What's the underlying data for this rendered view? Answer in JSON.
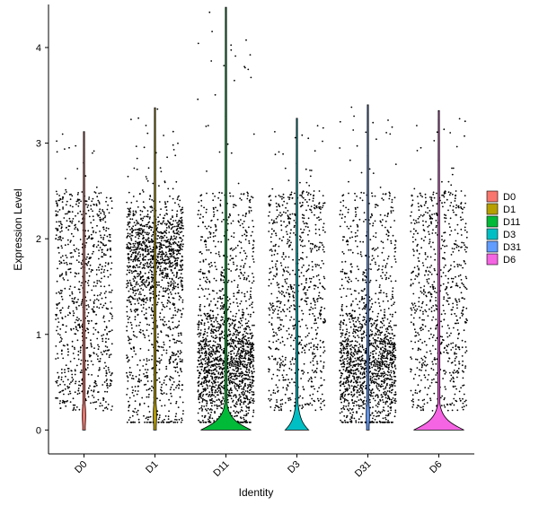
{
  "chart_data": {
    "type": "violin",
    "title": "",
    "xlabel": "Identity",
    "ylabel": "Expression Level",
    "ylim": [
      -0.25,
      4.45
    ],
    "yticks": [
      0,
      1,
      2,
      3,
      4
    ],
    "grid": false,
    "legend_position": "right",
    "categories": [
      "D0",
      "D1",
      "D11",
      "D3",
      "D31",
      "D6"
    ],
    "series": [
      {
        "name": "D0",
        "color": "#F8766D",
        "max": 3.12,
        "zero_density": 0.0,
        "points": 850
      },
      {
        "name": "D1",
        "color": "#B79F00",
        "max": 3.37,
        "zero_density": 0.0,
        "points": 1500
      },
      {
        "name": "D11",
        "color": "#00BA38",
        "max": 4.42,
        "zero_density": 0.8,
        "points": 1700
      },
      {
        "name": "D3",
        "color": "#00BFC4",
        "max": 3.26,
        "zero_density": 0.35,
        "points": 800
      },
      {
        "name": "D31",
        "color": "#619CFF",
        "max": 3.4,
        "zero_density": 0.0,
        "points": 1500
      },
      {
        "name": "D6",
        "color": "#F564E3",
        "max": 3.34,
        "zero_density": 0.8,
        "points": 750
      }
    ]
  }
}
